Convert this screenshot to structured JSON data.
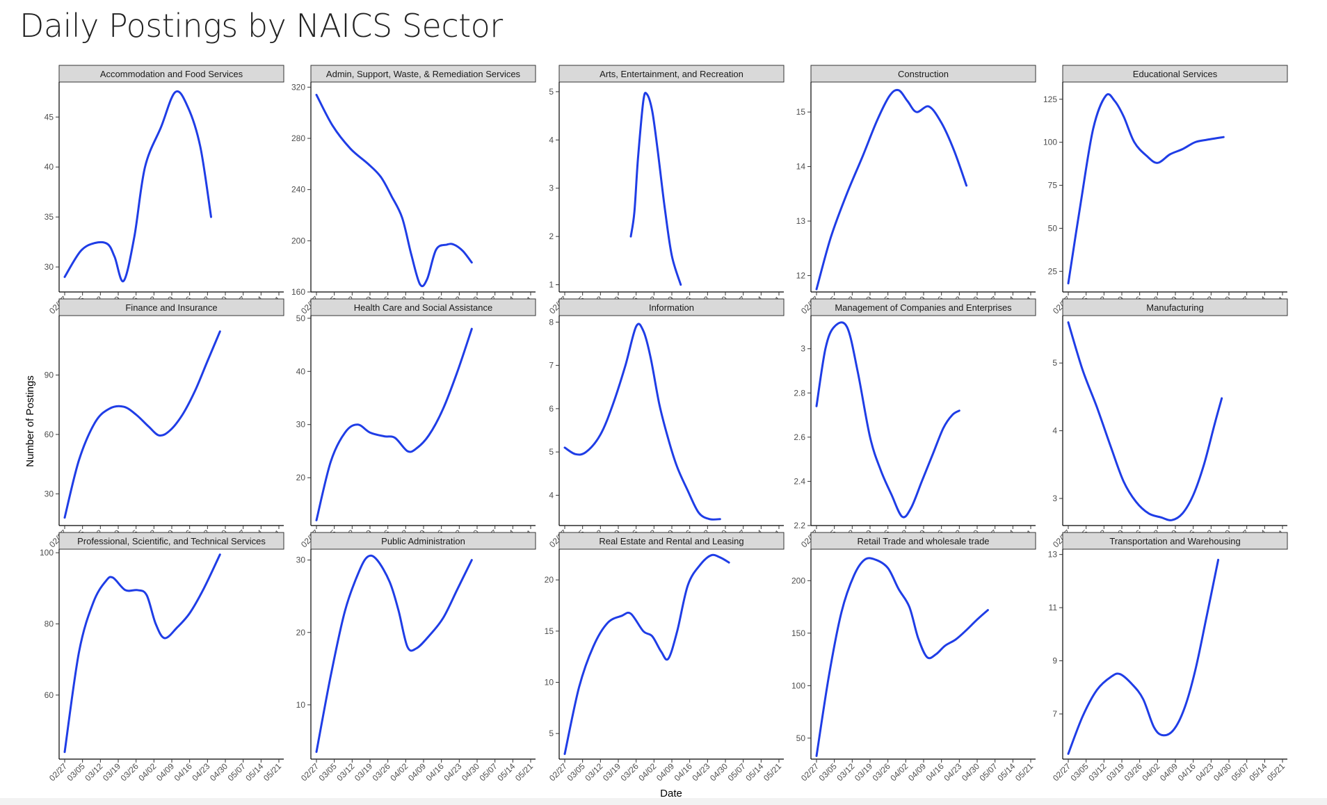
{
  "page": {
    "title": "Daily Postings by NAICS Sector"
  },
  "chart_data": {
    "type": "line",
    "title": "Daily Postings by NAICS Sector",
    "xlabel": "Date",
    "ylabel": "Number of Postings",
    "x_ticks": [
      "02/27",
      "03/05",
      "03/12",
      "03/19",
      "03/26",
      "04/02",
      "04/09",
      "04/16",
      "04/23",
      "04/30",
      "05/07",
      "05/14",
      "05/21"
    ],
    "series_color": "#1f3de6",
    "panels": [
      {
        "name": "Accommodation and Food Services",
        "ylim": [
          27.5,
          48.5
        ],
        "yticks": [
          30,
          35,
          40,
          45
        ],
        "points": [
          [
            0,
            29
          ],
          [
            0.9,
            31.6
          ],
          [
            1.7,
            32.4
          ],
          [
            2.4,
            32.3
          ],
          [
            2.8,
            31
          ],
          [
            3.3,
            28.6
          ],
          [
            3.9,
            33
          ],
          [
            4.5,
            40
          ],
          [
            5.4,
            44
          ],
          [
            6.2,
            47.5
          ],
          [
            6.9,
            46
          ],
          [
            7.6,
            42
          ],
          [
            8.2,
            35
          ]
        ]
      },
      {
        "name": "Admin, Support, Waste, & Remediation Services",
        "ylim": [
          160,
          324
        ],
        "yticks": [
          160,
          200,
          240,
          280,
          320
        ],
        "points": [
          [
            0,
            314
          ],
          [
            0.9,
            290
          ],
          [
            1.9,
            272
          ],
          [
            2.9,
            260
          ],
          [
            3.6,
            250
          ],
          [
            4.2,
            235
          ],
          [
            4.8,
            218
          ],
          [
            5.3,
            190
          ],
          [
            5.8,
            166
          ],
          [
            6.2,
            170
          ],
          [
            6.7,
            193
          ],
          [
            7.3,
            197
          ],
          [
            7.7,
            197
          ],
          [
            8.2,
            192
          ],
          [
            8.7,
            183
          ]
        ]
      },
      {
        "name": "Arts, Entertainment, and Recreation",
        "ylim": [
          0.85,
          5.2
        ],
        "yticks": [
          1,
          2,
          3,
          4,
          5
        ],
        "points": [
          [
            3.7,
            2
          ],
          [
            3.9,
            2.5
          ],
          [
            4.1,
            3.6
          ],
          [
            4.4,
            4.8
          ],
          [
            4.6,
            4.95
          ],
          [
            4.9,
            4.6
          ],
          [
            5.2,
            3.8
          ],
          [
            5.6,
            2.6
          ],
          [
            6,
            1.6
          ],
          [
            6.5,
            1
          ]
        ]
      },
      {
        "name": "Construction",
        "ylim": [
          11.7,
          15.55
        ],
        "yticks": [
          12,
          13,
          14,
          15
        ],
        "points": [
          [
            0,
            11.75
          ],
          [
            0.8,
            12.7
          ],
          [
            1.7,
            13.5
          ],
          [
            2.6,
            14.2
          ],
          [
            3.4,
            14.85
          ],
          [
            4.1,
            15.3
          ],
          [
            4.6,
            15.4
          ],
          [
            5.1,
            15.2
          ],
          [
            5.6,
            15.0
          ],
          [
            6.3,
            15.1
          ],
          [
            7.0,
            14.8
          ],
          [
            7.7,
            14.3
          ],
          [
            8.4,
            13.65
          ]
        ]
      },
      {
        "name": "Educational Services",
        "ylim": [
          13,
          135
        ],
        "yticks": [
          25,
          50,
          75,
          100,
          125
        ],
        "points": [
          [
            0,
            18
          ],
          [
            0.7,
            65
          ],
          [
            1.4,
            108
          ],
          [
            2.1,
            127
          ],
          [
            2.6,
            124
          ],
          [
            3.1,
            115
          ],
          [
            3.7,
            100
          ],
          [
            4.4,
            92
          ],
          [
            5.0,
            88
          ],
          [
            5.7,
            93
          ],
          [
            6.4,
            96
          ],
          [
            7.1,
            100
          ],
          [
            7.8,
            101.5
          ],
          [
            8.7,
            103
          ]
        ]
      },
      {
        "name": "Finance and Insurance",
        "ylim": [
          14,
          120
        ],
        "yticks": [
          30,
          60,
          90
        ],
        "points": [
          [
            0,
            18
          ],
          [
            0.8,
            47
          ],
          [
            1.7,
            66
          ],
          [
            2.5,
            73
          ],
          [
            3.3,
            74
          ],
          [
            4.0,
            70
          ],
          [
            4.7,
            64
          ],
          [
            5.3,
            59.5
          ],
          [
            5.9,
            62
          ],
          [
            6.6,
            70
          ],
          [
            7.3,
            82
          ],
          [
            8.0,
            97
          ],
          [
            8.7,
            112
          ]
        ]
      },
      {
        "name": "Health Care and Social Assistance",
        "ylim": [
          11,
          50.5
        ],
        "yticks": [
          20,
          30,
          40,
          50
        ],
        "points": [
          [
            0,
            12
          ],
          [
            0.8,
            23
          ],
          [
            1.6,
            28.5
          ],
          [
            2.3,
            30
          ],
          [
            3.0,
            28.5
          ],
          [
            3.8,
            27.8
          ],
          [
            4.4,
            27.5
          ],
          [
            5.1,
            25
          ],
          [
            5.6,
            25.5
          ],
          [
            6.3,
            28
          ],
          [
            7.1,
            33
          ],
          [
            7.9,
            40
          ],
          [
            8.7,
            48
          ]
        ]
      },
      {
        "name": "Information",
        "ylim": [
          3.3,
          8.15
        ],
        "yticks": [
          4,
          5,
          6,
          7,
          8
        ],
        "points": [
          [
            0,
            5.1
          ],
          [
            0.6,
            4.95
          ],
          [
            1.2,
            5.0
          ],
          [
            2.0,
            5.4
          ],
          [
            2.7,
            6.1
          ],
          [
            3.4,
            7.0
          ],
          [
            4.0,
            7.9
          ],
          [
            4.4,
            7.8
          ],
          [
            4.8,
            7.2
          ],
          [
            5.3,
            6.1
          ],
          [
            5.8,
            5.3
          ],
          [
            6.3,
            4.65
          ],
          [
            6.9,
            4.1
          ],
          [
            7.5,
            3.6
          ],
          [
            8.1,
            3.45
          ],
          [
            8.7,
            3.45
          ]
        ]
      },
      {
        "name": "Management of Companies and Enterprises",
        "ylim": [
          2.2,
          3.15
        ],
        "yticks": [
          2.2,
          2.4,
          2.6,
          2.8,
          3.0
        ],
        "points": [
          [
            0,
            2.74
          ],
          [
            0.5,
            3.0
          ],
          [
            1.0,
            3.1
          ],
          [
            1.7,
            3.1
          ],
          [
            2.3,
            2.9
          ],
          [
            3.0,
            2.6
          ],
          [
            3.6,
            2.45
          ],
          [
            4.2,
            2.34
          ],
          [
            4.8,
            2.24
          ],
          [
            5.3,
            2.28
          ],
          [
            5.9,
            2.4
          ],
          [
            6.5,
            2.52
          ],
          [
            7.1,
            2.64
          ],
          [
            7.6,
            2.7
          ],
          [
            8.0,
            2.72
          ]
        ]
      },
      {
        "name": "Manufacturing",
        "ylim": [
          2.6,
          5.7
        ],
        "yticks": [
          3,
          4,
          5
        ],
        "points": [
          [
            0,
            5.6
          ],
          [
            0.8,
            4.9
          ],
          [
            1.6,
            4.35
          ],
          [
            2.4,
            3.75
          ],
          [
            3.1,
            3.25
          ],
          [
            3.8,
            2.95
          ],
          [
            4.5,
            2.78
          ],
          [
            5.2,
            2.72
          ],
          [
            5.8,
            2.68
          ],
          [
            6.4,
            2.78
          ],
          [
            7.0,
            3.05
          ],
          [
            7.6,
            3.5
          ],
          [
            8.2,
            4.1
          ],
          [
            8.6,
            4.48
          ]
        ]
      },
      {
        "name": "Professional, Scientific, and Technical Services",
        "ylim": [
          42,
          101
        ],
        "yticks": [
          60,
          80,
          100
        ],
        "points": [
          [
            0,
            44
          ],
          [
            0.8,
            72
          ],
          [
            1.6,
            86
          ],
          [
            2.3,
            92
          ],
          [
            2.7,
            93
          ],
          [
            3.4,
            89.5
          ],
          [
            4.1,
            89.5
          ],
          [
            4.6,
            88
          ],
          [
            5.1,
            80
          ],
          [
            5.6,
            76
          ],
          [
            6.3,
            79
          ],
          [
            7.0,
            83
          ],
          [
            7.8,
            90
          ],
          [
            8.7,
            99.5
          ]
        ]
      },
      {
        "name": "Public Administration",
        "ylim": [
          2.5,
          31.5
        ],
        "yticks": [
          10,
          20,
          30
        ],
        "points": [
          [
            0,
            3.5
          ],
          [
            0.8,
            14
          ],
          [
            1.6,
            23
          ],
          [
            2.4,
            28.5
          ],
          [
            2.9,
            30.5
          ],
          [
            3.4,
            30
          ],
          [
            4.1,
            27
          ],
          [
            4.6,
            23
          ],
          [
            5.1,
            18
          ],
          [
            5.6,
            17.8
          ],
          [
            6.3,
            19.5
          ],
          [
            7.1,
            22
          ],
          [
            7.9,
            26
          ],
          [
            8.7,
            30
          ]
        ]
      },
      {
        "name": "Real Estate and Rental and Leasing",
        "ylim": [
          2.5,
          23
        ],
        "yticks": [
          5,
          10,
          15,
          20
        ],
        "points": [
          [
            0,
            3
          ],
          [
            0.8,
            9.5
          ],
          [
            1.6,
            13.5
          ],
          [
            2.4,
            15.8
          ],
          [
            3.2,
            16.5
          ],
          [
            3.7,
            16.7
          ],
          [
            4.4,
            15
          ],
          [
            4.9,
            14.5
          ],
          [
            5.4,
            13
          ],
          [
            5.8,
            12.3
          ],
          [
            6.3,
            15
          ],
          [
            6.9,
            19.5
          ],
          [
            7.6,
            21.5
          ],
          [
            8.2,
            22.4
          ],
          [
            8.7,
            22.2
          ],
          [
            9.2,
            21.7
          ]
        ]
      },
      {
        "name": "Retail Trade and wholesale trade",
        "ylim": [
          30,
          230
        ],
        "yticks": [
          50,
          100,
          150,
          200
        ],
        "points": [
          [
            0,
            33
          ],
          [
            0.7,
            110
          ],
          [
            1.4,
            170
          ],
          [
            2.1,
            205
          ],
          [
            2.7,
            220
          ],
          [
            3.3,
            220
          ],
          [
            4.0,
            212
          ],
          [
            4.6,
            192
          ],
          [
            5.2,
            175
          ],
          [
            5.7,
            145
          ],
          [
            6.2,
            127
          ],
          [
            6.7,
            130
          ],
          [
            7.2,
            138
          ],
          [
            7.8,
            144
          ],
          [
            8.4,
            153
          ],
          [
            9.0,
            163
          ],
          [
            9.6,
            172
          ]
        ]
      },
      {
        "name": "Transportation and Warehousing",
        "ylim": [
          5.3,
          13.2
        ],
        "yticks": [
          7,
          9,
          11,
          13
        ],
        "points": [
          [
            0,
            5.5
          ],
          [
            0.8,
            6.9
          ],
          [
            1.6,
            7.9
          ],
          [
            2.4,
            8.4
          ],
          [
            2.9,
            8.5
          ],
          [
            3.6,
            8.1
          ],
          [
            4.2,
            7.55
          ],
          [
            4.8,
            6.5
          ],
          [
            5.3,
            6.2
          ],
          [
            5.9,
            6.4
          ],
          [
            6.5,
            7.2
          ],
          [
            7.1,
            8.6
          ],
          [
            7.7,
            10.5
          ],
          [
            8.4,
            12.8
          ]
        ]
      }
    ]
  }
}
